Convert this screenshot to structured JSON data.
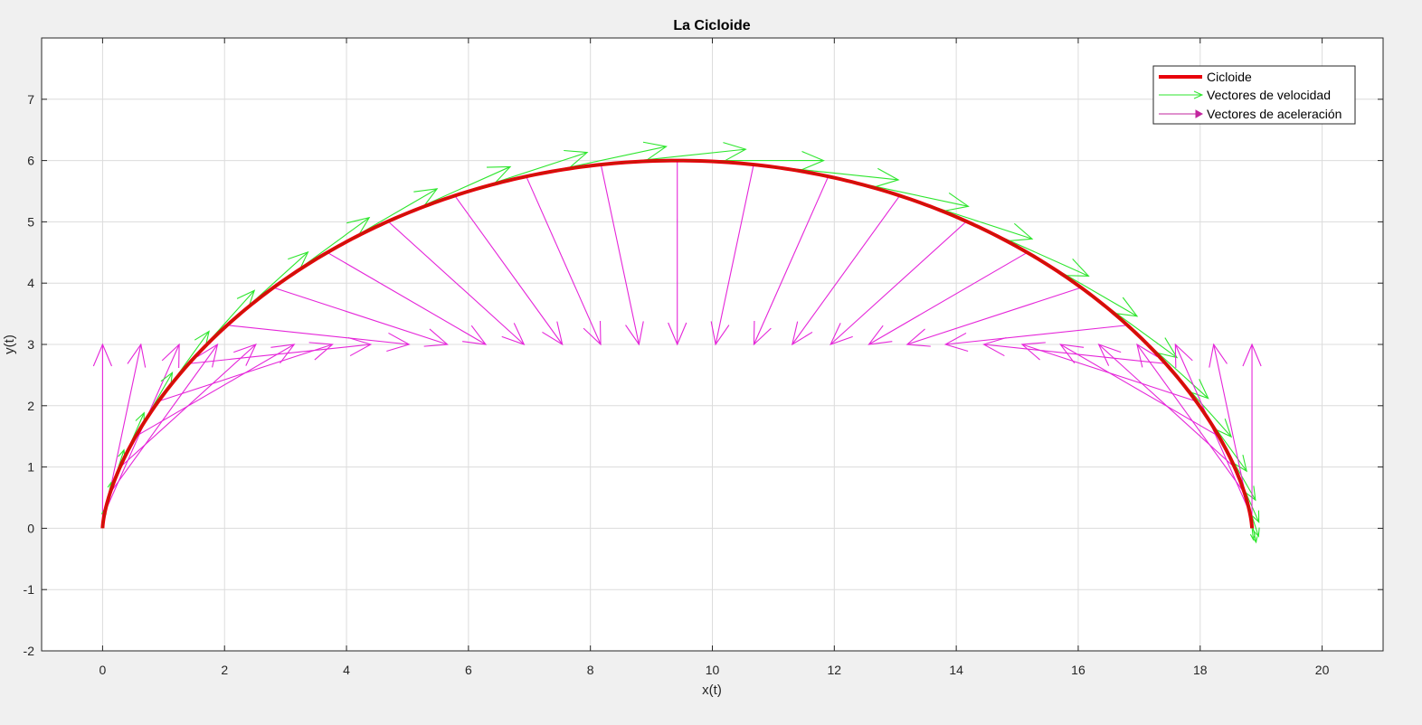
{
  "chart_data": {
    "type": "line",
    "title": "La Cicloide",
    "xlabel": "x(t)",
    "ylabel": "y(t)",
    "xlim": [
      -1,
      21
    ],
    "ylim": [
      -2,
      8
    ],
    "xticks": [
      0,
      2,
      4,
      6,
      8,
      10,
      12,
      14,
      16,
      18,
      20
    ],
    "yticks": [
      -2,
      -1,
      0,
      1,
      2,
      3,
      4,
      5,
      6,
      7
    ],
    "grid": true,
    "legend": {
      "placement": "top-right"
    },
    "cycloid": {
      "radius": 3,
      "t_range": [
        0,
        6.2832
      ]
    },
    "series": [
      {
        "name": "Cicloide",
        "color": "#e8000b",
        "kind": "curve"
      },
      {
        "name": "Vectores de velocidad",
        "color": "#2ee62e",
        "kind": "velocity-quiver"
      },
      {
        "name": "Vectores de aceleración",
        "color": "#e526d9",
        "kind": "acceleration-quiver"
      }
    ],
    "vectors": {
      "samples": 31,
      "velocity_scale": 0.2,
      "acceleration_scale": 1.0
    }
  }
}
